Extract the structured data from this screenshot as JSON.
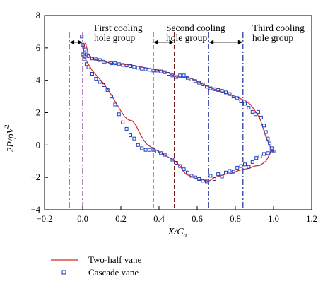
{
  "chart_data": {
    "type": "line",
    "title": "",
    "xlabel": "X/C",
    "xlabel_sub": "a",
    "ylabel": "2P/ρV",
    "ylabel_sup": "2",
    "xlim": [
      -0.2,
      1.2
    ],
    "ylim": [
      -4,
      8
    ],
    "xticks": [
      -0.2,
      0.0,
      0.2,
      0.4,
      0.6,
      0.8,
      1.0,
      1.2
    ],
    "xtick_labels": [
      "−0.2",
      "0.0",
      "0.2",
      "0.4",
      "0.6",
      "0.8",
      "1.0",
      "1.2"
    ],
    "yticks": [
      -4,
      -2,
      0,
      2,
      4,
      6,
      8
    ],
    "ytick_labels": [
      "−4",
      "−2",
      "0",
      "2",
      "4",
      "6",
      "8"
    ],
    "grid": false,
    "legend_position": "bottom-left, outside plot",
    "annotations": [
      {
        "lines": [
          "First cooling",
          "hole group"
        ]
      },
      {
        "lines": [
          "Second cooling",
          "hole group"
        ]
      },
      {
        "lines": [
          "Third cooling",
          "hole group"
        ]
      }
    ],
    "hole_groups": [
      {
        "range": [
          -0.07,
          0.0
        ],
        "color": "#8a3d9c",
        "style": "dash-dot"
      },
      {
        "range": [
          0.37,
          0.48
        ],
        "color": "#7a1f1f",
        "style": "dashed"
      },
      {
        "range": [
          0.66,
          0.84
        ],
        "color": "#1f2f9c",
        "style": "dash-dot"
      }
    ],
    "series": [
      {
        "name": "Two-half vane",
        "kind": "line",
        "color": "#d62728",
        "x": [
          0.0,
          0.01,
          0.015,
          0.03,
          0.06,
          0.1,
          0.15,
          0.2,
          0.25,
          0.3,
          0.35,
          0.4,
          0.45,
          0.5,
          0.55,
          0.6,
          0.65,
          0.7,
          0.75,
          0.8,
          0.85,
          0.88,
          0.91,
          0.93,
          0.96,
          0.99,
          1.0,
          0.99,
          0.96,
          0.93,
          0.9,
          0.87,
          0.84,
          0.81,
          0.78,
          0.75,
          0.72,
          0.69,
          0.66,
          0.63,
          0.6,
          0.57,
          0.54,
          0.51,
          0.48,
          0.45,
          0.42,
          0.39,
          0.37,
          0.34,
          0.32,
          0.3,
          0.28,
          0.26,
          0.24,
          0.22,
          0.2,
          0.17,
          0.14,
          0.11,
          0.08,
          0.05,
          0.03,
          0.01,
          0.0
        ],
        "y": [
          5.5,
          6.2,
          6.3,
          5.6,
          5.3,
          5.2,
          5.05,
          5.0,
          4.95,
          4.85,
          4.72,
          4.62,
          4.45,
          4.15,
          4.2,
          3.95,
          3.65,
          3.4,
          3.2,
          3.0,
          2.75,
          2.5,
          2.0,
          1.6,
          0.5,
          -0.3,
          -0.4,
          -0.35,
          -1.0,
          -1.25,
          -1.3,
          -1.45,
          -1.5,
          -1.6,
          -1.75,
          -1.8,
          -1.9,
          -2.0,
          -2.25,
          -2.15,
          -2.1,
          -1.95,
          -1.8,
          -1.3,
          -0.95,
          -0.75,
          -0.55,
          -0.35,
          -0.2,
          0.0,
          0.3,
          0.7,
          1.2,
          1.5,
          1.55,
          1.75,
          2.1,
          2.7,
          3.3,
          3.8,
          4.2,
          4.6,
          5.0,
          5.4,
          5.5
        ]
      },
      {
        "name": "Cascade vane",
        "kind": "markers",
        "color": "#1f3fbf",
        "x": [
          -0.005,
          0.0,
          0.01,
          0.02,
          0.03,
          0.05,
          0.07,
          0.09,
          0.11,
          0.13,
          0.15,
          0.17,
          0.19,
          0.21,
          0.23,
          0.25,
          0.27,
          0.29,
          0.31,
          0.33,
          0.35,
          0.37,
          0.39,
          0.41,
          0.43,
          0.45,
          0.47,
          0.49,
          0.51,
          0.53,
          0.55,
          0.57,
          0.59,
          0.61,
          0.63,
          0.65,
          0.67,
          0.69,
          0.71,
          0.73,
          0.75,
          0.77,
          0.79,
          0.81,
          0.83,
          0.85,
          0.87,
          0.89,
          0.905,
          0.92,
          0.935,
          0.95,
          0.96,
          0.97,
          0.98,
          0.99,
          1.0,
          0.0,
          0.01,
          0.02,
          0.03,
          0.05,
          0.07,
          0.09,
          0.11,
          0.13,
          0.15,
          0.17,
          0.19,
          0.21,
          0.23,
          0.25,
          0.27,
          0.29,
          0.31,
          0.33,
          0.35,
          0.37,
          0.39,
          0.41,
          0.43,
          0.45,
          0.47,
          0.49,
          0.51,
          0.53,
          0.55,
          0.57,
          0.59,
          0.61,
          0.63,
          0.65,
          0.67,
          0.69,
          0.71,
          0.73,
          0.75,
          0.77,
          0.79,
          0.81,
          0.83,
          0.85,
          0.87,
          0.89,
          0.91,
          0.93,
          0.95,
          0.97,
          0.99
        ],
        "y": [
          6.7,
          6.2,
          5.9,
          5.6,
          5.5,
          5.35,
          5.3,
          5.25,
          5.15,
          5.1,
          5.05,
          5.05,
          5.0,
          4.95,
          4.92,
          4.88,
          4.82,
          4.78,
          4.72,
          4.68,
          4.65,
          4.6,
          4.6,
          4.55,
          4.5,
          4.4,
          4.3,
          4.2,
          4.3,
          4.3,
          4.15,
          4.05,
          3.95,
          3.85,
          3.75,
          3.6,
          3.5,
          3.45,
          3.4,
          3.35,
          3.25,
          3.15,
          3.0,
          2.9,
          2.7,
          2.55,
          2.3,
          2.05,
          1.9,
          2.05,
          1.7,
          1.2,
          0.8,
          0.4,
          0.1,
          -0.2,
          -0.4,
          5.6,
          5.3,
          5.0,
          4.8,
          4.4,
          4.1,
          3.9,
          3.7,
          3.4,
          3.0,
          2.5,
          1.9,
          1.4,
          1.0,
          0.6,
          0.4,
          0.0,
          -0.2,
          -0.3,
          -0.3,
          -0.3,
          -0.4,
          -0.5,
          -0.6,
          -0.7,
          -0.9,
          -1.1,
          -1.3,
          -1.5,
          -1.7,
          -1.9,
          -2.0,
          -2.1,
          -2.2,
          -2.25,
          -1.9,
          -2.1,
          -1.8,
          -1.95,
          -1.7,
          -1.6,
          -1.65,
          -1.4,
          -1.3,
          -1.2,
          -1.35,
          -1.05,
          -0.8,
          -0.7,
          -0.55,
          -0.5,
          -0.4
        ]
      }
    ]
  }
}
